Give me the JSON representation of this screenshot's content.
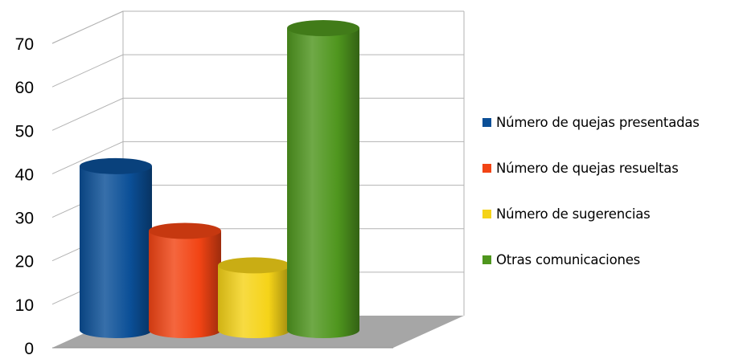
{
  "chart_data": {
    "type": "bar",
    "style": "3d-cylinder",
    "title": "",
    "xlabel": "",
    "ylabel": "",
    "ylim": [
      0,
      70
    ],
    "yticks": [
      0,
      10,
      20,
      30,
      40,
      50,
      60,
      70
    ],
    "grid": true,
    "legend_position": "right",
    "series": [
      {
        "name": "Número de quejas presentadas",
        "value": 38,
        "color": "#0b4f97"
      },
      {
        "name": "Número de quejas resueltas",
        "value": 23,
        "color": "#f24414"
      },
      {
        "name": "Número de sugerencias",
        "value": 15,
        "color": "#f5d318"
      },
      {
        "name": "Otras comunicaciones",
        "value": 70,
        "color": "#4f961e"
      }
    ]
  }
}
